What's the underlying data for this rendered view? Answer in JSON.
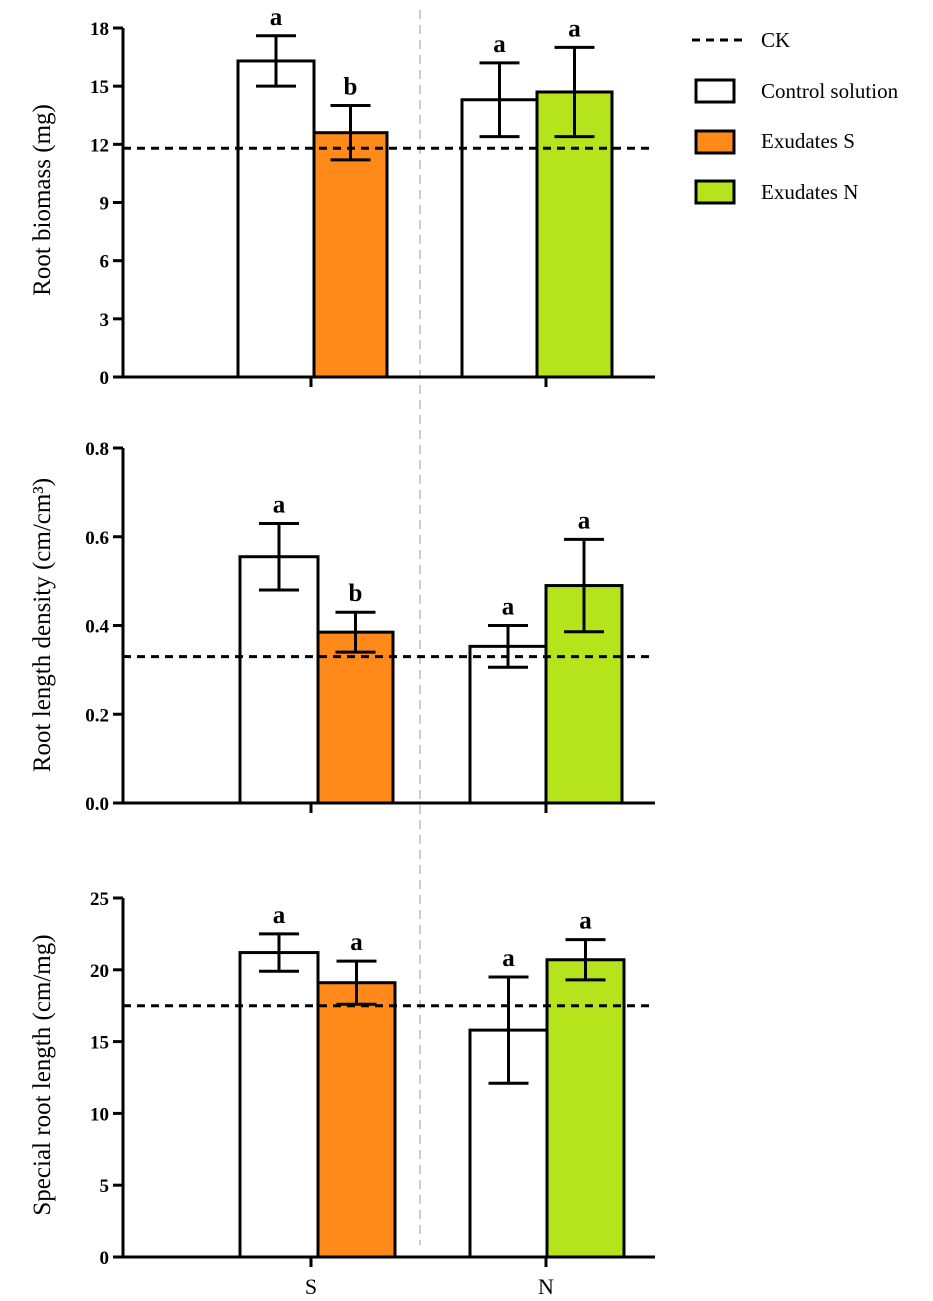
{
  "legend": {
    "ck_label": "CK",
    "items": [
      {
        "label": "Control solution",
        "color": "#ffffff"
      },
      {
        "label": "Exudates S",
        "color": "#ff8a1a"
      },
      {
        "label": "Exudates N",
        "color": "#b5e31c"
      }
    ]
  },
  "colors": {
    "control": "#ffffff",
    "exudates_s": "#ff8a1a",
    "exudates_n": "#b5e31c",
    "divider": "#cccccc"
  },
  "chart_data": [
    {
      "type": "bar",
      "panel": "biomass",
      "ylabel": "Root biomass (mg)",
      "ylim": [
        0,
        18
      ],
      "yticks": [
        "0",
        "3",
        "6",
        "9",
        "12",
        "15",
        "18"
      ],
      "categories": [
        "S",
        "N"
      ],
      "ck": 11.8,
      "series": [
        {
          "name": "Control solution",
          "values": [
            16.3,
            14.3
          ],
          "errors": [
            1.3,
            1.9
          ],
          "letters": [
            "a",
            "a"
          ]
        },
        {
          "name": "Exudates S",
          "values": [
            12.6,
            null
          ],
          "errors": [
            1.4,
            null
          ],
          "letters": [
            "b",
            null
          ]
        },
        {
          "name": "Exudates N",
          "values": [
            null,
            14.7
          ],
          "errors": [
            null,
            2.3
          ],
          "letters": [
            null,
            "a"
          ]
        }
      ]
    },
    {
      "type": "bar",
      "panel": "density",
      "ylabel": "Root length density (cm/cm³)",
      "ylim": [
        0,
        0.8
      ],
      "yticks": [
        "0.0",
        "0.2",
        "0.4",
        "0.6",
        "0.8"
      ],
      "categories": [
        "S",
        "N"
      ],
      "ck": 0.33,
      "series": [
        {
          "name": "Control solution",
          "values": [
            0.555,
            0.353
          ],
          "errors": [
            0.075,
            0.047
          ],
          "letters": [
            "a",
            "a"
          ]
        },
        {
          "name": "Exudates S",
          "values": [
            0.385,
            null
          ],
          "errors": [
            0.045,
            null
          ],
          "letters": [
            "b",
            null
          ]
        },
        {
          "name": "Exudates N",
          "values": [
            null,
            0.49
          ],
          "errors": [
            null,
            0.104
          ],
          "letters": [
            null,
            "a"
          ]
        }
      ]
    },
    {
      "type": "bar",
      "panel": "special",
      "ylabel": "Special root length (cm/mg)",
      "ylim": [
        0,
        25
      ],
      "yticks": [
        "0",
        "5",
        "10",
        "15",
        "20",
        "25"
      ],
      "categories": [
        "S",
        "N"
      ],
      "ck": 17.5,
      "series": [
        {
          "name": "Control solution",
          "values": [
            21.2,
            15.8
          ],
          "errors": [
            1.3,
            3.7
          ],
          "letters": [
            "a",
            "a"
          ]
        },
        {
          "name": "Exudates S",
          "values": [
            19.1,
            null
          ],
          "errors": [
            1.5,
            null
          ],
          "letters": [
            "a",
            null
          ]
        },
        {
          "name": "Exudates N",
          "values": [
            null,
            20.7
          ],
          "errors": [
            null,
            1.4
          ],
          "letters": [
            null,
            "a"
          ]
        }
      ]
    }
  ]
}
